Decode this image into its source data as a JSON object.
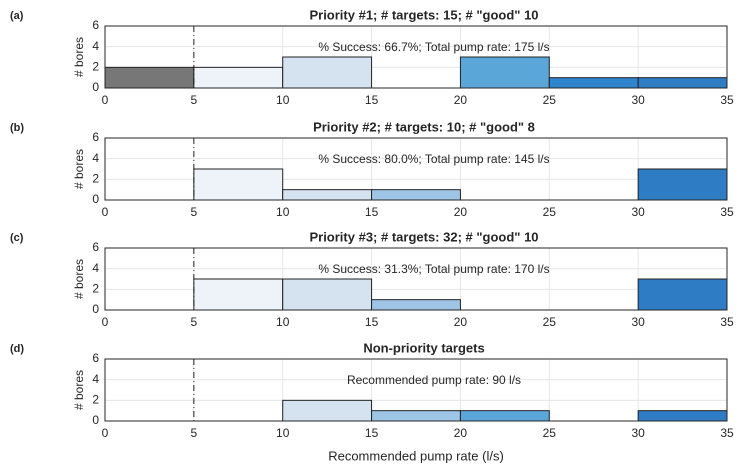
{
  "chart_data": [
    {
      "type": "histogram",
      "panel_label": "(a)",
      "title": "Priority #1; # targets: 15; # \"good\" 10",
      "annotation": "% Success: 66.7%; Total pump rate: 175 l/s",
      "ylabel": "# bores",
      "bins": [
        0,
        5,
        10,
        15,
        20,
        25,
        30,
        35
      ],
      "counts": [
        2,
        2,
        3,
        0,
        3,
        1,
        1
      ],
      "colors": [
        "#777777",
        "#eef3f9",
        "#d5e2f0",
        "#9fc5e6",
        "#5aa6d9",
        "#2f86cc",
        "#2e7cc4"
      ],
      "xlim": [
        0,
        35
      ],
      "xticks": [
        0,
        5,
        10,
        15,
        20,
        25,
        30,
        35
      ],
      "ylim": [
        0,
        6
      ],
      "yticks": [
        0,
        2,
        4,
        6
      ],
      "reference_line": 5,
      "grid": true
    },
    {
      "type": "histogram",
      "panel_label": "(b)",
      "title": "Priority #2; # targets: 10; # \"good\" 8",
      "annotation": "% Success: 80.0%; Total pump rate: 145 l/s",
      "ylabel": "# bores",
      "bins": [
        0,
        5,
        10,
        15,
        20,
        25,
        30,
        35
      ],
      "counts": [
        0,
        3,
        1,
        1,
        0,
        0,
        3
      ],
      "colors": [
        "#777777",
        "#eef3f9",
        "#d5e2f0",
        "#9fc5e6",
        "#5aa6d9",
        "#2f86cc",
        "#2e7cc4"
      ],
      "xlim": [
        0,
        35
      ],
      "xticks": [
        0,
        5,
        10,
        15,
        20,
        25,
        30,
        35
      ],
      "ylim": [
        0,
        6
      ],
      "yticks": [
        0,
        2,
        4,
        6
      ],
      "reference_line": 5,
      "grid": true
    },
    {
      "type": "histogram",
      "panel_label": "(c)",
      "title": "Priority #3; # targets: 32; # \"good\" 10",
      "annotation": "% Success: 31.3%; Total pump rate: 170 l/s",
      "ylabel": "# bores",
      "bins": [
        0,
        5,
        10,
        15,
        20,
        25,
        30,
        35
      ],
      "counts": [
        0,
        3,
        3,
        1,
        0,
        0,
        3
      ],
      "colors": [
        "#777777",
        "#eef3f9",
        "#d5e2f0",
        "#9fc5e6",
        "#5aa6d9",
        "#2f86cc",
        "#2e7cc4"
      ],
      "xlim": [
        0,
        35
      ],
      "xticks": [
        0,
        5,
        10,
        15,
        20,
        25,
        30,
        35
      ],
      "ylim": [
        0,
        6
      ],
      "yticks": [
        0,
        2,
        4,
        6
      ],
      "reference_line": 5,
      "grid": true
    },
    {
      "type": "histogram",
      "panel_label": "(d)",
      "title": "Non-priority targets",
      "annotation": "Recommended pump rate: 90 l/s",
      "ylabel": "# bores",
      "xlabel": "Recommended pump rate (l/s)",
      "bins": [
        0,
        5,
        10,
        15,
        20,
        25,
        30,
        35
      ],
      "counts": [
        0,
        0,
        2,
        1,
        1,
        0,
        1
      ],
      "colors": [
        "#777777",
        "#eef3f9",
        "#d5e2f0",
        "#9fc5e6",
        "#5aa6d9",
        "#2f86cc",
        "#2e7cc4"
      ],
      "xlim": [
        0,
        35
      ],
      "xticks": [
        0,
        5,
        10,
        15,
        20,
        25,
        30,
        35
      ],
      "ylim": [
        0,
        6
      ],
      "yticks": [
        0,
        2,
        4,
        6
      ],
      "reference_line": 5,
      "grid": true
    }
  ]
}
